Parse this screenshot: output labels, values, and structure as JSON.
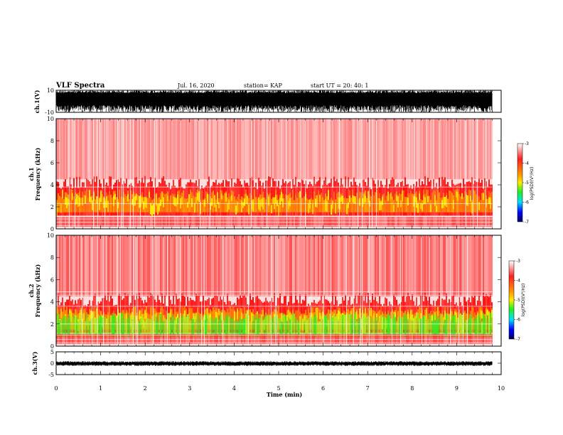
{
  "header": {
    "title": "VLF Spectra",
    "date": "Jul. 16, 2020",
    "station": "station= KAP",
    "start": "start  UT =   20: 40: 1"
  },
  "colors": {
    "axis": "#000000",
    "spectrogram_bg": "#ffd8d8",
    "red": "#ff1010",
    "orange": "#ff9a00",
    "yellow": "#ffee00",
    "green": "#33ee22",
    "cyan": "#00ffff",
    "blue": "#0000ff",
    "navy": "#000080"
  },
  "chart_data": [
    {
      "type": "line",
      "name": "ch1-waveform",
      "ylabel": "ch.1(V)",
      "ylim": [
        -10,
        10
      ],
      "yticks": [
        "10",
        "-10"
      ],
      "xlim": [
        0,
        10
      ],
      "description_values": {
        "min": -10,
        "max": 10
      }
    },
    {
      "type": "heatmap",
      "name": "ch1-spectrogram",
      "ylabel_lines": [
        "ch.1",
        "Frequency (kHz)"
      ],
      "xlim": [
        0,
        10
      ],
      "ylim": [
        0,
        10
      ],
      "yticks": [
        "0",
        "2",
        "4",
        "6",
        "8",
        "10"
      ],
      "data_extent_min": 9.8,
      "colorbar": {
        "label": "log(PSD)(V²/Hz)",
        "range": [
          -7,
          -3
        ],
        "ticks": [
          "-3",
          "-4",
          "-5",
          "-6",
          "-7"
        ]
      }
    },
    {
      "type": "heatmap",
      "name": "ch2-spectrogram",
      "ylabel_lines": [
        "ch.2",
        "Frequency (kHz)"
      ],
      "xlim": [
        0,
        10
      ],
      "ylim": [
        0,
        10
      ],
      "yticks": [
        "0",
        "2",
        "4",
        "6",
        "8",
        "10"
      ],
      "data_extent_min": 9.8,
      "colorbar": {
        "label": "log(PSD)(V²/Hz)",
        "range": [
          -7,
          -3
        ],
        "ticks": [
          "-3",
          "-4",
          "-5",
          "-6",
          "-7"
        ]
      }
    },
    {
      "type": "line",
      "name": "ch3-waveform",
      "ylabel": "ch.3(V)",
      "ylim": [
        -5,
        5
      ],
      "yticks": [
        "5",
        "0",
        "-5"
      ],
      "xlim": [
        0,
        10
      ],
      "xlabel": "Time (min)",
      "xticks": [
        "0",
        "1",
        "2",
        "3",
        "4",
        "5",
        "6",
        "7",
        "8",
        "9",
        "10"
      ]
    }
  ]
}
